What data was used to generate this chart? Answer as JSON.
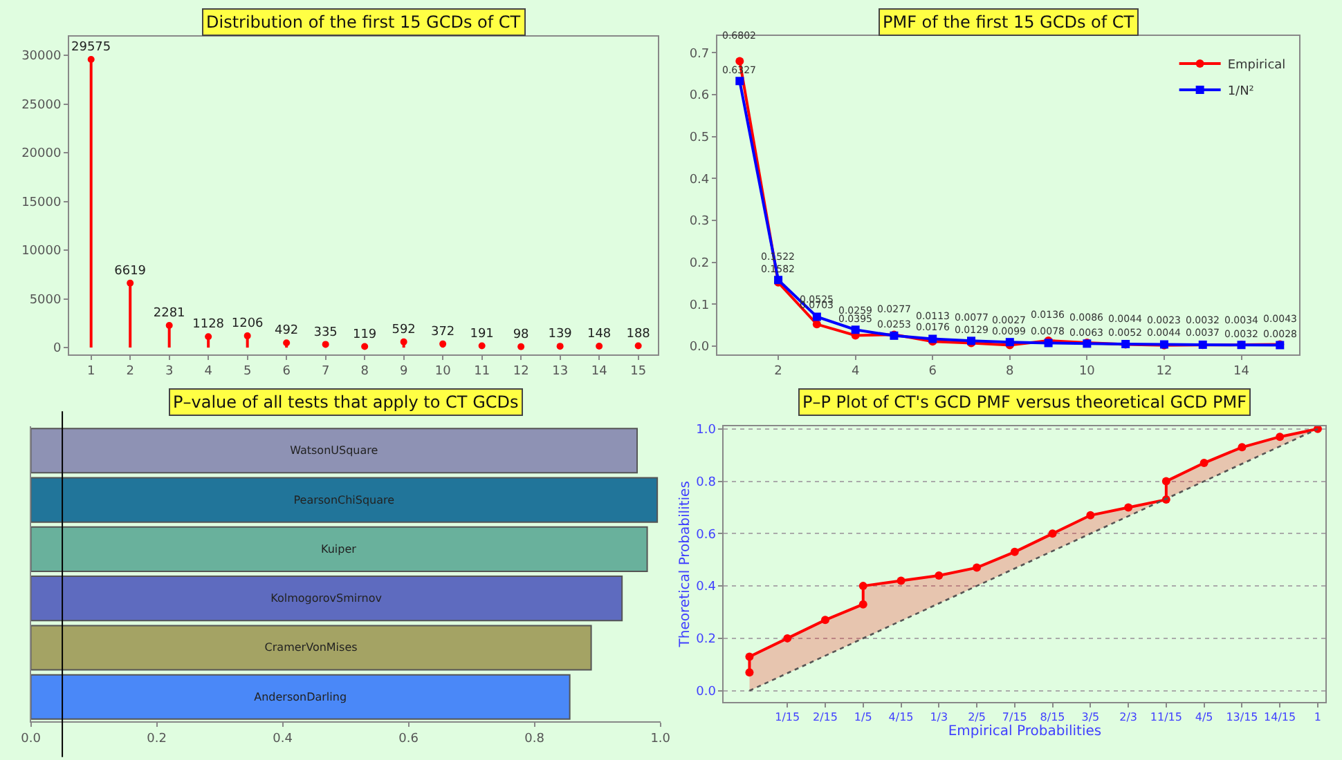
{
  "chart_data": [
    {
      "type": "lollipop",
      "title": "Distribution of the first 15 GCDs of CT",
      "x": [
        1,
        2,
        3,
        4,
        5,
        6,
        7,
        8,
        9,
        10,
        11,
        12,
        13,
        14,
        15
      ],
      "values": [
        29575,
        6619,
        2281,
        1128,
        1206,
        492,
        335,
        119,
        592,
        372,
        191,
        98,
        139,
        148,
        188
      ],
      "color": "#ff0000",
      "xlim": [
        0.44,
        15.5
      ],
      "xticks": [
        1,
        2,
        3,
        4,
        5,
        6,
        7,
        8,
        9,
        10,
        11,
        12,
        13,
        14,
        15
      ],
      "ylim": [
        -680,
        31900
      ],
      "yticks": [
        0,
        5000,
        10000,
        15000,
        20000,
        25000,
        30000
      ],
      "data_labels": true
    },
    {
      "type": "line",
      "title": "PMF of the first 15 GCDs of CT",
      "x": [
        1,
        2,
        3,
        4,
        5,
        6,
        7,
        8,
        9,
        10,
        11,
        12,
        13,
        14,
        15
      ],
      "series": [
        {
          "name": "Empirical",
          "color": "#ff0000",
          "marker": "circle",
          "values": [
            0.6802,
            0.1522,
            0.0525,
            0.0259,
            0.0277,
            0.0113,
            0.0077,
            0.0027,
            0.0136,
            0.0086,
            0.0044,
            0.0023,
            0.0032,
            0.0034,
            0.0043
          ]
        },
        {
          "name": "1/N²",
          "color": "#0000ff",
          "marker": "square",
          "values": [
            0.6327,
            0.1582,
            0.0703,
            0.0395,
            0.0253,
            0.0176,
            0.0129,
            0.0099,
            0.0078,
            0.0063,
            0.0052,
            0.0044,
            0.0037,
            0.0032,
            0.0028
          ]
        }
      ],
      "xlim": [
        0.42,
        15.5
      ],
      "xticks": [
        2,
        4,
        6,
        8,
        10,
        12,
        14
      ],
      "ylim": [
        -0.019,
        0.74
      ],
      "yticks": [
        {
          "value": 0,
          "label": "0.0"
        },
        0.1,
        0.2,
        0.3,
        0.4,
        0.5,
        0.6,
        0.7
      ],
      "data_labels": true,
      "legend": "top right"
    },
    {
      "type": "bar",
      "orientation": "horizontal",
      "title": "P–value of all tests that apply to CT GCDs",
      "categories": [
        "WatsonUSquare",
        "PearsonChiSquare",
        "Kuiper",
        "KolmogorovSmirnov",
        "CramerVonMises",
        "AndersonDarling"
      ],
      "values": [
        0.963,
        0.995,
        0.979,
        0.939,
        0.89,
        0.856
      ],
      "colors": [
        "#8e92b4",
        "#21759a",
        "#69b19c",
        "#5e6bbf",
        "#a4a364",
        "#4a88f8"
      ],
      "xlim": [
        0,
        1
      ],
      "xticks": [
        {
          "value": 0,
          "label": "0.0"
        },
        0.2,
        0.4,
        0.6,
        0.8,
        {
          "value": 1,
          "label": "1.0"
        }
      ],
      "ref_lines": [
        {
          "axis": "x",
          "value": 0.05,
          "color": "#000000"
        }
      ]
    },
    {
      "type": "line",
      "title": "P–P Plot of CT's GCD PMF versus theoretical GCD PMF",
      "xlabel": "Empirical Probabilities",
      "ylabel": "Theoretical Probabilities",
      "series": [
        {
          "color": "#ff0000",
          "marker": "circle",
          "x": [
            0,
            0,
            0.0667,
            0.1333,
            0.2,
            0.2,
            0.2667,
            0.3333,
            0.4,
            0.4667,
            0.5333,
            0.6,
            0.6667,
            0.7333,
            0.7333,
            0.8,
            0.8667,
            0.9333,
            1
          ],
          "values": [
            0.07,
            0.13,
            0.2,
            0.27,
            0.33,
            0.4,
            0.42,
            0.44,
            0.47,
            0.53,
            0.6,
            0.67,
            0.7,
            0.73,
            0.8,
            0.87,
            0.93,
            0.97,
            1.0
          ],
          "lower": [
            0,
            0,
            0.0667,
            0.1333,
            0.2,
            0.2,
            0.2667,
            0.3333,
            0.4,
            0.4667,
            0.5333,
            0.6,
            0.6667,
            0.7333,
            0.7333,
            0.8,
            0.8667,
            0.9333,
            1
          ],
          "upper": [
            0.07,
            0.13,
            0.2,
            0.27,
            0.33,
            0.4,
            0.42,
            0.44,
            0.47,
            0.53,
            0.6,
            0.67,
            0.7,
            0.73,
            0.8,
            0.87,
            0.93,
            0.97,
            1.0
          ]
        },
        {
          "color": "#555555",
          "marker": "none",
          "line_style": "dotted",
          "x": [
            0,
            1
          ],
          "values": [
            0,
            1
          ]
        }
      ],
      "xlim": [
        -0.045,
        1.014
      ],
      "xticks": [
        {
          "value": 0.0667,
          "label": "1/15"
        },
        {
          "value": 0.1333,
          "label": "2/15"
        },
        {
          "value": 0.2,
          "label": "1/5"
        },
        {
          "value": 0.2667,
          "label": "4/15"
        },
        {
          "value": 0.3333,
          "label": "1/3"
        },
        {
          "value": 0.4,
          "label": "2/5"
        },
        {
          "value": 0.4667,
          "label": "7/15"
        },
        {
          "value": 0.5333,
          "label": "8/15"
        },
        {
          "value": 0.6,
          "label": "3/5"
        },
        {
          "value": 0.6667,
          "label": "2/3"
        },
        {
          "value": 0.7333,
          "label": "11/15"
        },
        {
          "value": 0.8,
          "label": "4/5"
        },
        {
          "value": 0.8667,
          "label": "13/15"
        },
        {
          "value": 0.9333,
          "label": "14/15"
        },
        1
      ],
      "ylim": [
        -0.043,
        1.011
      ],
      "yticks": [
        {
          "value": 0,
          "label": "0.0"
        },
        {
          "value": 0.2,
          "label": "0.2"
        },
        {
          "value": 0.4,
          "label": "0.4"
        },
        {
          "value": 0.6,
          "label": "0.6"
        },
        {
          "value": 0.8,
          "label": "0.8"
        },
        {
          "value": 1,
          "label": "1.0"
        }
      ],
      "grid": "y"
    }
  ]
}
